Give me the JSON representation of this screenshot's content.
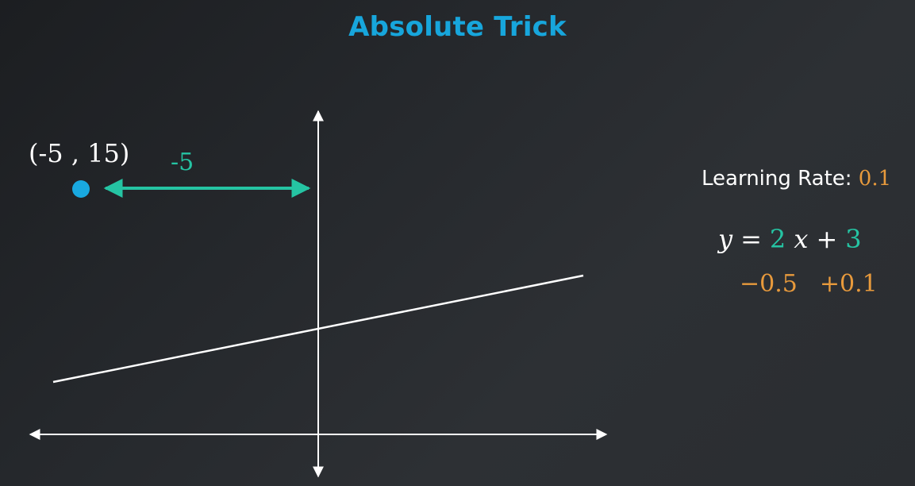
{
  "title": "Absolute Trick",
  "point": {
    "label": "(-5 , 15)",
    "x": -5,
    "y": 15,
    "color": "#19a9e0"
  },
  "distance_label": "-5",
  "learning_rate": {
    "label": "Learning Rate:",
    "value": "0.1"
  },
  "equation": {
    "y": "y",
    "equals": "=",
    "slope": "2",
    "x": "x",
    "plus": "+",
    "intercept": "3"
  },
  "adjustments": {
    "slope_delta": "−0.5",
    "intercept_delta": "+0.1"
  },
  "colors": {
    "title": "#17a6dc",
    "accent_teal": "#25c4a3",
    "accent_orange": "#e89a3c",
    "axes": "#ffffff",
    "point": "#19a9e0"
  },
  "icons": [
    "double-arrow-icon",
    "point-marker-icon"
  ]
}
